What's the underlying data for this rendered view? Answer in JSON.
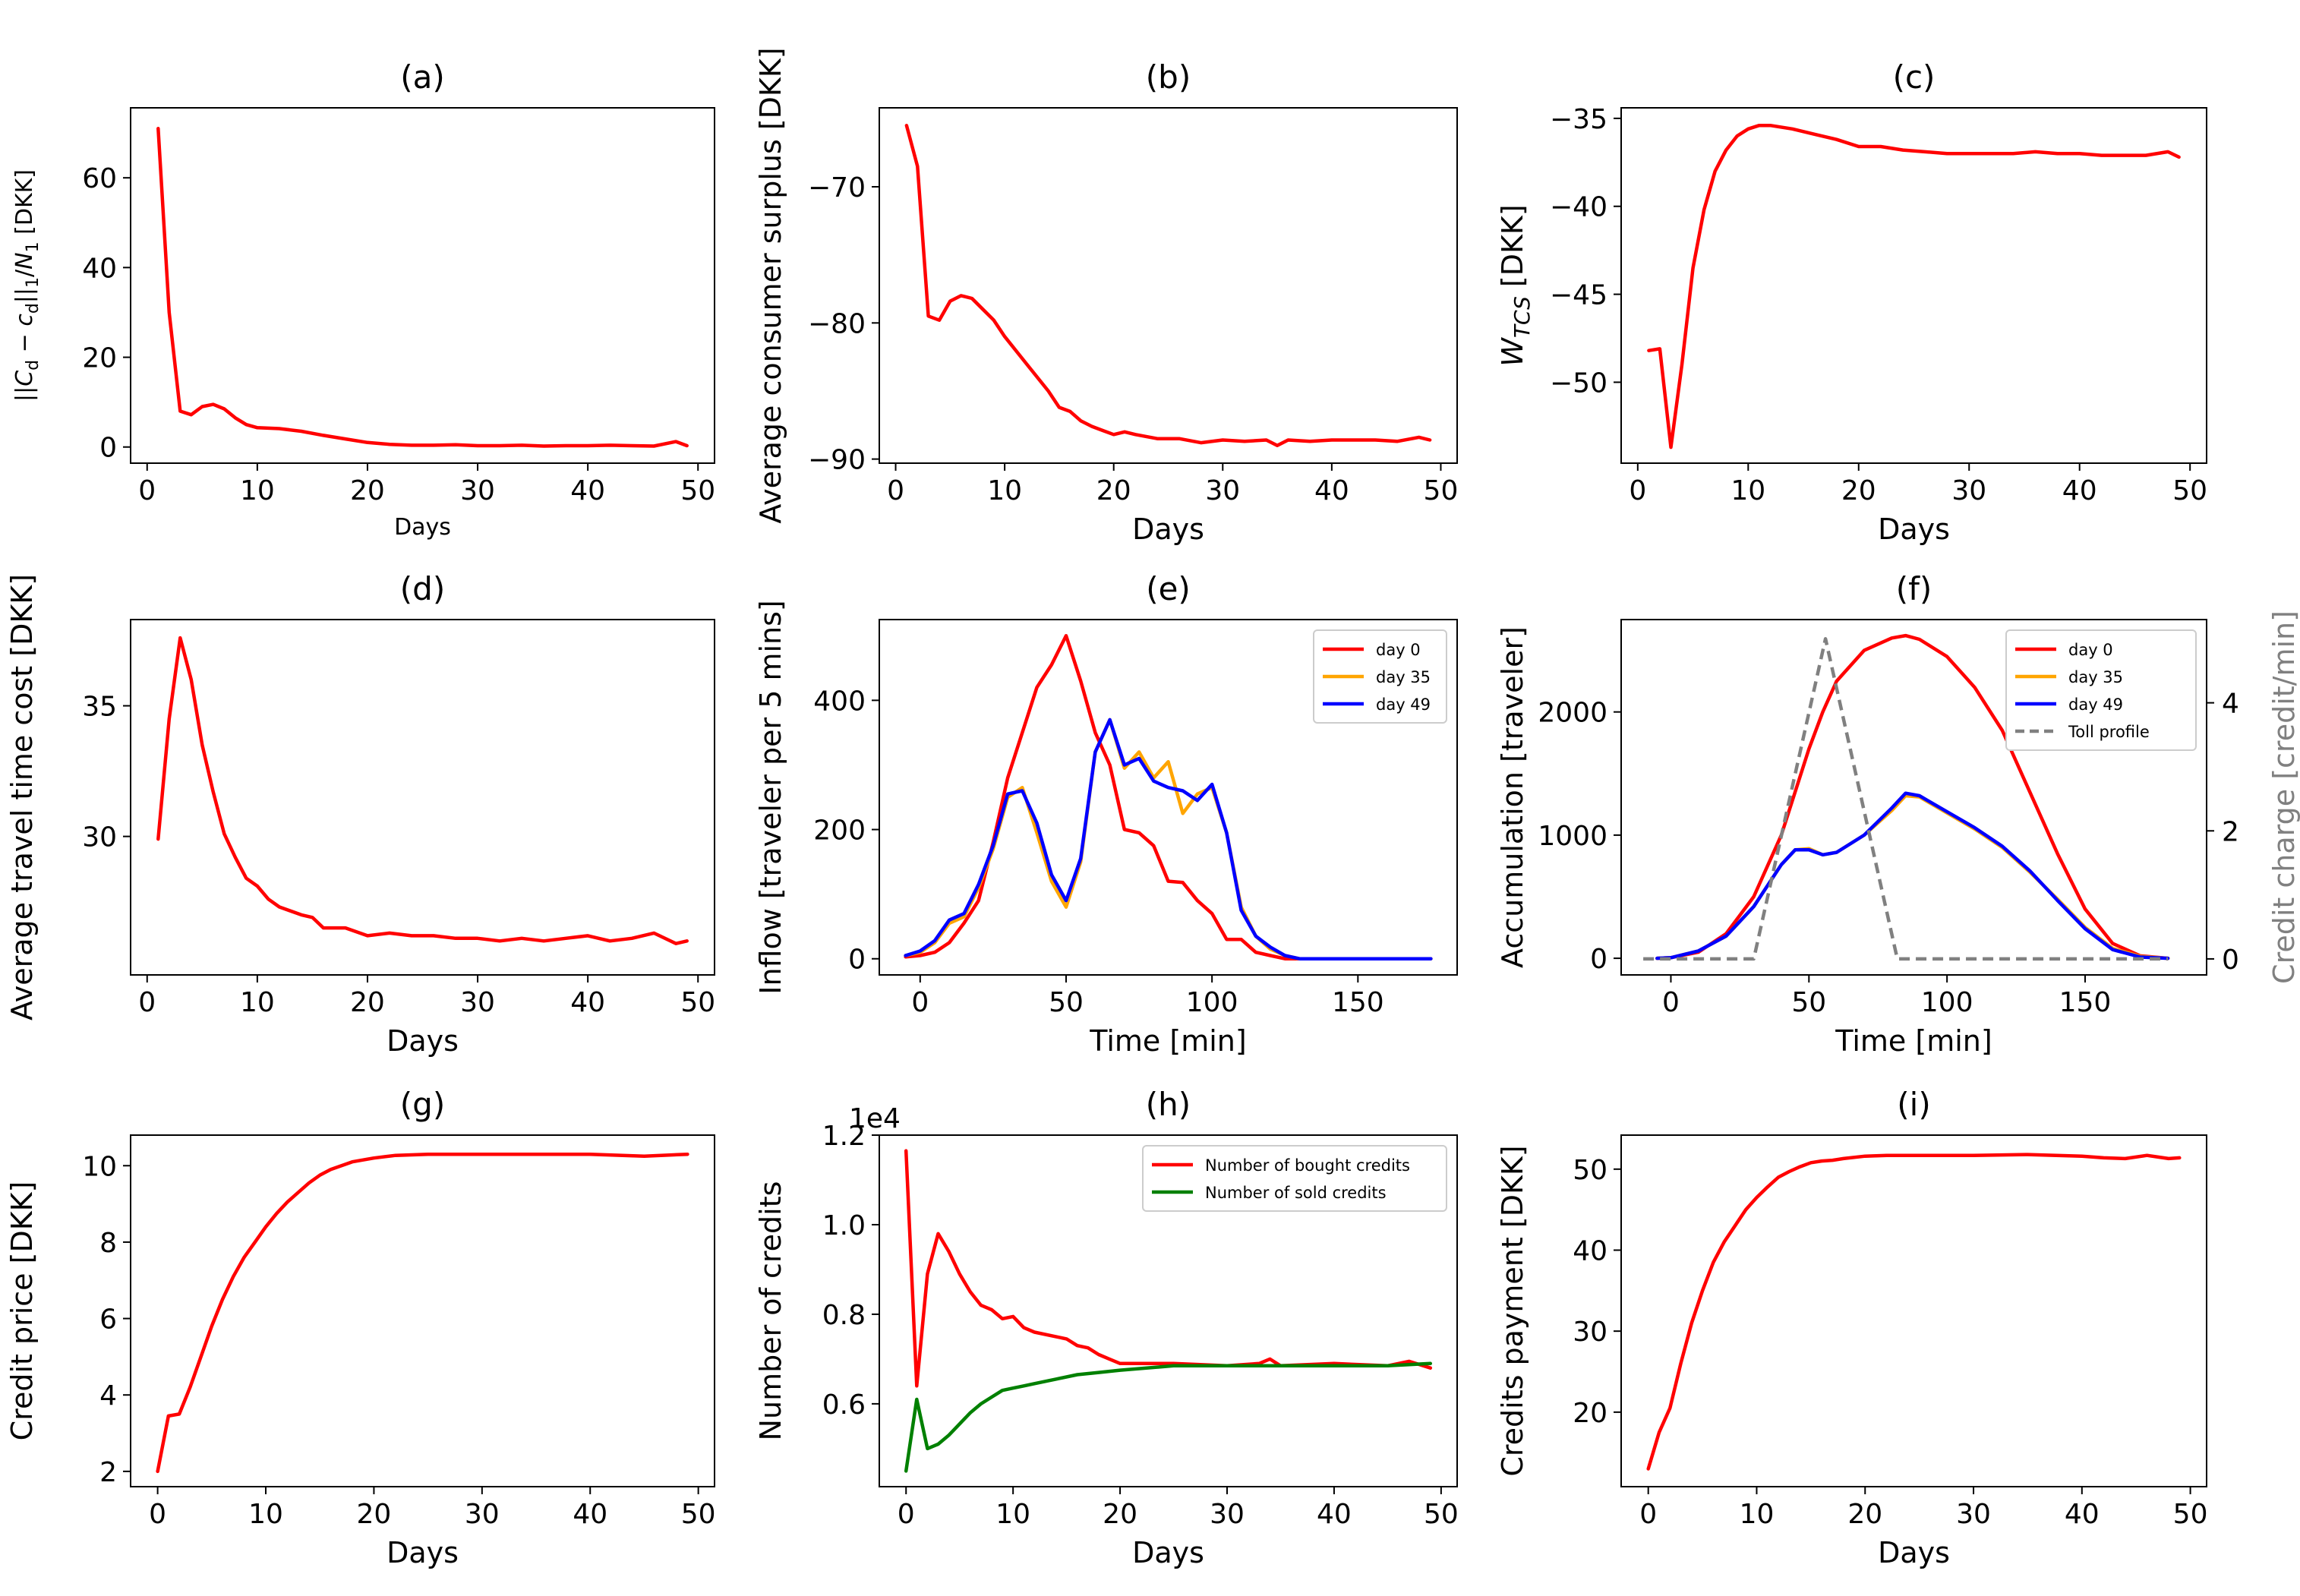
{
  "chart_data": [
    {
      "id": "a",
      "type": "line",
      "title": "(a)",
      "xlabel": "Days",
      "ylabel": "||C_d − c_d||_1 / N_1 [DKK]",
      "xlim": [
        -1.5,
        51.5
      ],
      "ylim": [
        -3.6,
        75.6
      ],
      "xticks": [
        0,
        10,
        20,
        30,
        40,
        50
      ],
      "yticks": [
        0,
        20,
        40,
        60
      ],
      "series": [
        {
          "color": "#ff0000",
          "x": [
            1,
            2,
            3,
            4,
            5,
            6,
            7,
            8,
            9,
            10,
            12,
            14,
            16,
            18,
            20,
            22,
            24,
            26,
            28,
            30,
            32,
            34,
            36,
            38,
            40,
            42,
            44,
            46,
            48,
            49
          ],
          "y": [
            71,
            30,
            8,
            7.2,
            9,
            9.5,
            8.5,
            6.5,
            5,
            4.3,
            4.1,
            3.5,
            2.6,
            1.8,
            1.0,
            0.6,
            0.4,
            0.4,
            0.5,
            0.3,
            0.3,
            0.4,
            0.2,
            0.3,
            0.3,
            0.4,
            0.3,
            0.2,
            1.2,
            0.3
          ]
        }
      ]
    },
    {
      "id": "b",
      "type": "line",
      "title": "(b)",
      "xlabel": "Days",
      "ylabel": "Average consumer surplus [DKK]",
      "xlim": [
        -1.5,
        51.5
      ],
      "ylim": [
        -90.3,
        -64.2
      ],
      "xticks": [
        0,
        10,
        20,
        30,
        40,
        50
      ],
      "yticks": [
        -70,
        -80,
        -90
      ],
      "series": [
        {
          "color": "#ff0000",
          "x": [
            1,
            2,
            3,
            4,
            5,
            6,
            7,
            8,
            9,
            10,
            12,
            14,
            15,
            16,
            17,
            18,
            19,
            20,
            21,
            22,
            24,
            26,
            28,
            30,
            32,
            34,
            35,
            36,
            38,
            40,
            42,
            44,
            46,
            48,
            49
          ],
          "y": [
            -65.5,
            -68.5,
            -79.5,
            -79.8,
            -78.4,
            -78,
            -78.2,
            -79,
            -79.8,
            -81,
            -83,
            -85,
            -86.2,
            -86.5,
            -87.2,
            -87.6,
            -87.9,
            -88.2,
            -88,
            -88.2,
            -88.5,
            -88.5,
            -88.8,
            -88.6,
            -88.7,
            -88.6,
            -89,
            -88.6,
            -88.7,
            -88.6,
            -88.6,
            -88.6,
            -88.7,
            -88.4,
            -88.6
          ]
        }
      ]
    },
    {
      "id": "c",
      "type": "line",
      "title": "(c)",
      "xlabel": "Days",
      "ylabel": "W_TCS [DKK]",
      "xlim": [
        -1.5,
        51.5
      ],
      "ylim": [
        -54.6,
        -34.4
      ],
      "xticks": [
        0,
        10,
        20,
        30,
        40,
        50
      ],
      "yticks": [
        -35,
        -40,
        -45,
        -50
      ],
      "series": [
        {
          "color": "#ff0000",
          "x": [
            1,
            2,
            3,
            4,
            5,
            6,
            7,
            8,
            9,
            10,
            11,
            12,
            14,
            16,
            18,
            20,
            22,
            24,
            26,
            28,
            30,
            32,
            34,
            36,
            38,
            40,
            42,
            44,
            46,
            48,
            49
          ],
          "y": [
            -48.2,
            -48.1,
            -53.7,
            -49,
            -43.5,
            -40.2,
            -38,
            -36.8,
            -36,
            -35.6,
            -35.4,
            -35.4,
            -35.6,
            -35.9,
            -36.2,
            -36.6,
            -36.6,
            -36.8,
            -36.9,
            -37,
            -37,
            -37,
            -37,
            -36.9,
            -37,
            -37,
            -37.1,
            -37.1,
            -37.1,
            -36.9,
            -37.2
          ]
        }
      ]
    },
    {
      "id": "d",
      "type": "line",
      "title": "(d)",
      "xlabel": "Days",
      "ylabel": "Average travel time cost [DKK]",
      "xlim": [
        -1.5,
        51.5
      ],
      "ylim": [
        24.7,
        38.3
      ],
      "xticks": [
        0,
        10,
        20,
        30,
        40,
        50
      ],
      "yticks": [
        30,
        35
      ],
      "series": [
        {
          "color": "#ff0000",
          "x": [
            1,
            2,
            3,
            4,
            5,
            6,
            7,
            8,
            9,
            10,
            11,
            12,
            14,
            15,
            16,
            18,
            20,
            22,
            24,
            26,
            28,
            30,
            32,
            34,
            36,
            38,
            40,
            42,
            44,
            46,
            48,
            49
          ],
          "y": [
            29.9,
            34.5,
            37.6,
            36,
            33.5,
            31.7,
            30.1,
            29.2,
            28.4,
            28.1,
            27.6,
            27.3,
            27,
            26.9,
            26.5,
            26.5,
            26.2,
            26.3,
            26.2,
            26.2,
            26.1,
            26.1,
            26.0,
            26.1,
            26.0,
            26.1,
            26.2,
            26.0,
            26.1,
            26.3,
            25.9,
            26.0
          ]
        }
      ]
    },
    {
      "id": "e",
      "type": "line",
      "title": "(e)",
      "xlabel": "Time [min]",
      "ylabel": "Inflow [traveler per 5 mins]",
      "xlim": [
        -14,
        184
      ],
      "ylim": [
        -25,
        525
      ],
      "xticks": [
        0,
        50,
        100,
        150
      ],
      "yticks": [
        0,
        200,
        400
      ],
      "series": [
        {
          "name": "day 0",
          "color": "#ff0000",
          "x": [
            -5,
            0,
            5,
            10,
            15,
            20,
            25,
            30,
            35,
            40,
            45,
            50,
            55,
            60,
            65,
            70,
            75,
            80,
            85,
            90,
            95,
            100,
            105,
            110,
            115,
            120,
            125,
            130,
            175
          ],
          "y": [
            3,
            5,
            10,
            25,
            55,
            90,
            180,
            280,
            350,
            420,
            455,
            500,
            430,
            350,
            300,
            200,
            195,
            175,
            120,
            118,
            90,
            70,
            30,
            30,
            10,
            5,
            0,
            0,
            0
          ]
        },
        {
          "name": "day 35",
          "color": "#ffa500",
          "x": [
            -5,
            0,
            5,
            10,
            15,
            20,
            25,
            30,
            35,
            40,
            45,
            50,
            55,
            60,
            65,
            70,
            75,
            80,
            85,
            90,
            95,
            100,
            105,
            110,
            115,
            120,
            125,
            130,
            175
          ],
          "y": [
            5,
            10,
            25,
            55,
            65,
            110,
            170,
            250,
            265,
            195,
            120,
            80,
            150,
            320,
            370,
            295,
            320,
            280,
            305,
            225,
            255,
            265,
            195,
            80,
            35,
            15,
            5,
            0,
            0
          ]
        },
        {
          "name": "day 49",
          "color": "#0000ff",
          "x": [
            -5,
            0,
            5,
            10,
            15,
            20,
            25,
            30,
            35,
            40,
            45,
            50,
            55,
            60,
            65,
            70,
            75,
            80,
            85,
            90,
            95,
            100,
            105,
            110,
            115,
            120,
            125,
            130,
            175
          ],
          "y": [
            5,
            12,
            28,
            60,
            70,
            115,
            175,
            255,
            260,
            210,
            130,
            90,
            155,
            320,
            370,
            300,
            310,
            275,
            265,
            260,
            245,
            270,
            195,
            75,
            35,
            18,
            5,
            0,
            0
          ]
        }
      ],
      "legend": "top-right"
    },
    {
      "id": "f",
      "type": "line",
      "title": "(f)",
      "xlabel": "Time [min]",
      "ylabel": "Accumulation [traveler]",
      "y2label": "Credit charge [credit/min]",
      "xlim": [
        -18,
        194
      ],
      "ylim": [
        -135,
        2750
      ],
      "y2lim": [
        -0.25,
        5.3
      ],
      "xticks": [
        0,
        50,
        100,
        150
      ],
      "yticks": [
        0,
        1000,
        2000
      ],
      "y2ticks": [
        0,
        2,
        4
      ],
      "series": [
        {
          "name": "day 0",
          "color": "#ff0000",
          "axis": "left",
          "x": [
            -5,
            0,
            10,
            20,
            30,
            40,
            50,
            55,
            60,
            70,
            80,
            85,
            90,
            100,
            110,
            120,
            130,
            140,
            150,
            160,
            170,
            180
          ],
          "y": [
            0,
            5,
            50,
            200,
            500,
            1000,
            1700,
            2000,
            2250,
            2500,
            2600,
            2620,
            2590,
            2450,
            2200,
            1850,
            1350,
            850,
            400,
            120,
            20,
            0
          ]
        },
        {
          "name": "day 35",
          "color": "#ffa500",
          "axis": "left",
          "x": [
            -5,
            0,
            10,
            20,
            30,
            40,
            45,
            50,
            55,
            60,
            70,
            80,
            85,
            90,
            100,
            110,
            120,
            130,
            140,
            150,
            160,
            170,
            180
          ],
          "y": [
            0,
            5,
            60,
            180,
            420,
            760,
            880,
            890,
            840,
            860,
            1000,
            1200,
            1320,
            1310,
            1180,
            1050,
            900,
            700,
            480,
            250,
            80,
            15,
            0
          ]
        },
        {
          "name": "day 49",
          "color": "#0000ff",
          "axis": "left",
          "x": [
            -5,
            0,
            10,
            20,
            30,
            40,
            45,
            50,
            55,
            60,
            70,
            80,
            85,
            90,
            100,
            110,
            120,
            130,
            140,
            150,
            160,
            170,
            180
          ],
          "y": [
            0,
            5,
            60,
            180,
            420,
            760,
            880,
            880,
            840,
            860,
            1000,
            1220,
            1340,
            1320,
            1190,
            1060,
            910,
            710,
            470,
            240,
            70,
            10,
            0
          ]
        },
        {
          "name": "Toll profile",
          "color": "#808080",
          "axis": "right",
          "dashed": true,
          "x": [
            -10,
            30,
            56,
            82,
            180
          ],
          "y": [
            0,
            0,
            5.0,
            0,
            0
          ]
        }
      ],
      "legend": "top-right"
    },
    {
      "id": "g",
      "type": "line",
      "title": "(g)",
      "xlabel": "Days",
      "ylabel": "Credit price [DKK]",
      "xlim": [
        -2.5,
        51.5
      ],
      "ylim": [
        1.6,
        10.8
      ],
      "xticks": [
        0,
        10,
        20,
        30,
        40,
        50
      ],
      "yticks": [
        2,
        4,
        6,
        8,
        10
      ],
      "series": [
        {
          "color": "#ff0000",
          "x": [
            0,
            1,
            2,
            3,
            4,
            5,
            6,
            7,
            8,
            9,
            10,
            11,
            12,
            13,
            14,
            15,
            16,
            17,
            18,
            20,
            22,
            25,
            30,
            35,
            40,
            45,
            49
          ],
          "y": [
            2,
            3.45,
            3.5,
            4.2,
            5.0,
            5.8,
            6.5,
            7.1,
            7.6,
            8.0,
            8.4,
            8.75,
            9.05,
            9.3,
            9.55,
            9.75,
            9.9,
            10.0,
            10.1,
            10.2,
            10.27,
            10.3,
            10.3,
            10.3,
            10.3,
            10.25,
            10.3
          ]
        }
      ]
    },
    {
      "id": "h",
      "type": "line",
      "title": "(h)",
      "xlabel": "Days",
      "ylabel": "Number of credits",
      "axis_multiplier": "1e4",
      "xlim": [
        -2.5,
        51.5
      ],
      "ylim": [
        0.415,
        1.2
      ],
      "xticks": [
        0,
        10,
        20,
        30,
        40,
        50
      ],
      "yticks": [
        0.6,
        0.8,
        1.0,
        1.2
      ],
      "series": [
        {
          "name": "Number of bought credits",
          "color": "#ff0000",
          "x": [
            0,
            1,
            2,
            3,
            4,
            5,
            6,
            7,
            8,
            9,
            10,
            11,
            12,
            14,
            15,
            16,
            17,
            18,
            19,
            20,
            25,
            30,
            33,
            34,
            35,
            40,
            45,
            47,
            49
          ],
          "y": [
            1.165,
            0.64,
            0.89,
            0.98,
            0.94,
            0.89,
            0.85,
            0.82,
            0.81,
            0.79,
            0.795,
            0.77,
            0.76,
            0.75,
            0.745,
            0.73,
            0.725,
            0.71,
            0.7,
            0.69,
            0.69,
            0.685,
            0.69,
            0.7,
            0.685,
            0.69,
            0.685,
            0.695,
            0.68
          ]
        },
        {
          "name": "Number of sold credits",
          "color": "#008000",
          "x": [
            0,
            1,
            2,
            3,
            4,
            5,
            6,
            7,
            8,
            9,
            10,
            11,
            12,
            14,
            16,
            18,
            20,
            25,
            30,
            35,
            40,
            45,
            49
          ],
          "y": [
            0.45,
            0.61,
            0.5,
            0.51,
            0.53,
            0.555,
            0.58,
            0.6,
            0.615,
            0.63,
            0.635,
            0.64,
            0.645,
            0.655,
            0.665,
            0.67,
            0.675,
            0.685,
            0.685,
            0.685,
            0.685,
            0.685,
            0.69
          ]
        }
      ],
      "legend": "top-right"
    },
    {
      "id": "i",
      "type": "line",
      "title": "(i)",
      "xlabel": "Days",
      "ylabel": "Credits payment [DKK]",
      "xlim": [
        -2.5,
        51.5
      ],
      "ylim": [
        10.8,
        54.2
      ],
      "xticks": [
        0,
        10,
        20,
        30,
        40,
        50
      ],
      "yticks": [
        20,
        30,
        40,
        50
      ],
      "series": [
        {
          "color": "#ff0000",
          "x": [
            0,
            1,
            2,
            3,
            4,
            5,
            6,
            7,
            8,
            9,
            10,
            11,
            12,
            13,
            14,
            15,
            16,
            17,
            18,
            20,
            22,
            25,
            30,
            35,
            40,
            42,
            44,
            46,
            48,
            49
          ],
          "y": [
            13,
            17.5,
            20.5,
            26,
            31,
            35,
            38.5,
            41,
            43,
            45,
            46.5,
            47.8,
            49,
            49.7,
            50.3,
            50.8,
            51,
            51.1,
            51.3,
            51.6,
            51.7,
            51.7,
            51.7,
            51.8,
            51.6,
            51.4,
            51.3,
            51.7,
            51.3,
            51.4
          ]
        }
      ]
    }
  ]
}
